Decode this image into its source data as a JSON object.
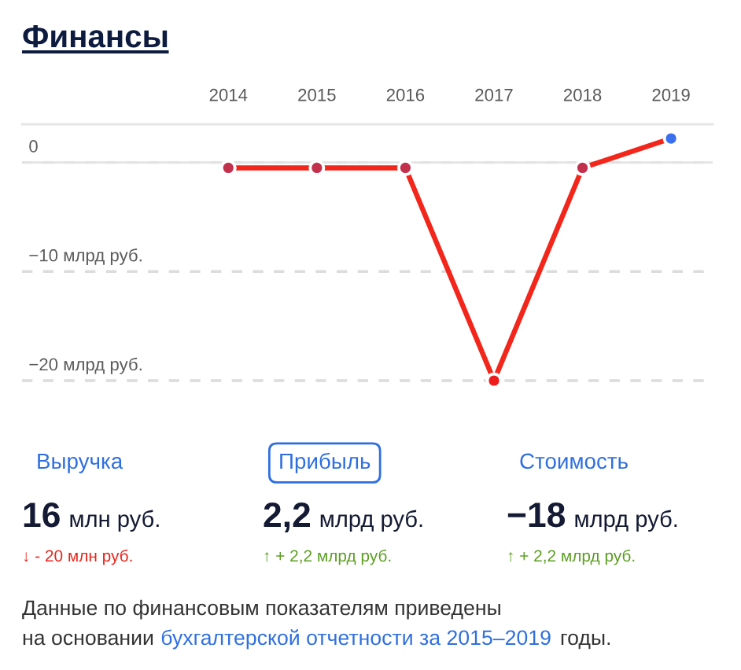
{
  "chart_data": {
    "type": "line",
    "title": "Финансы",
    "categories": [
      "2014",
      "2015",
      "2016",
      "2017",
      "2018",
      "2019"
    ],
    "series": [
      {
        "color": "#f2261b",
        "colors": [
          "#c2304c",
          "#c2304c",
          "#c2304c",
          "#ee1c1c",
          "#c2304c",
          "#3a70ee"
        ],
        "values": [
          -0.5,
          -0.5,
          -0.5,
          -20,
          -0.5,
          2.2
        ]
      }
    ],
    "ylim": [
      -20,
      3.5
    ],
    "yticks": [
      0,
      {
        "value": -10,
        "label": "−10 млрд руб."
      },
      {
        "value": -20,
        "label": "−20 млрд руб."
      }
    ],
    "grid": "y",
    "marker": "circle",
    "line_style": "solid",
    "ref_lines": [
      {
        "axis": "y",
        "value": 0,
        "color": "#e3e3e3",
        "line_style": "solid"
      }
    ],
    "annotations": [
      "Выручка",
      "Прибыль",
      "Стоимость",
      "16",
      "млн руб.",
      "2,2",
      "млрд руб.",
      "−18",
      "млрд руб.",
      "↓ - 20 млн руб.",
      "↑ + 2,2 млрд руб.",
      "↑ + 2,2 млрд руб.",
      "Данные по финансовым показателям приведены",
      "на основании",
      "бухгалтерской отчетности за 2015–2019",
      "годы."
    ]
  }
}
